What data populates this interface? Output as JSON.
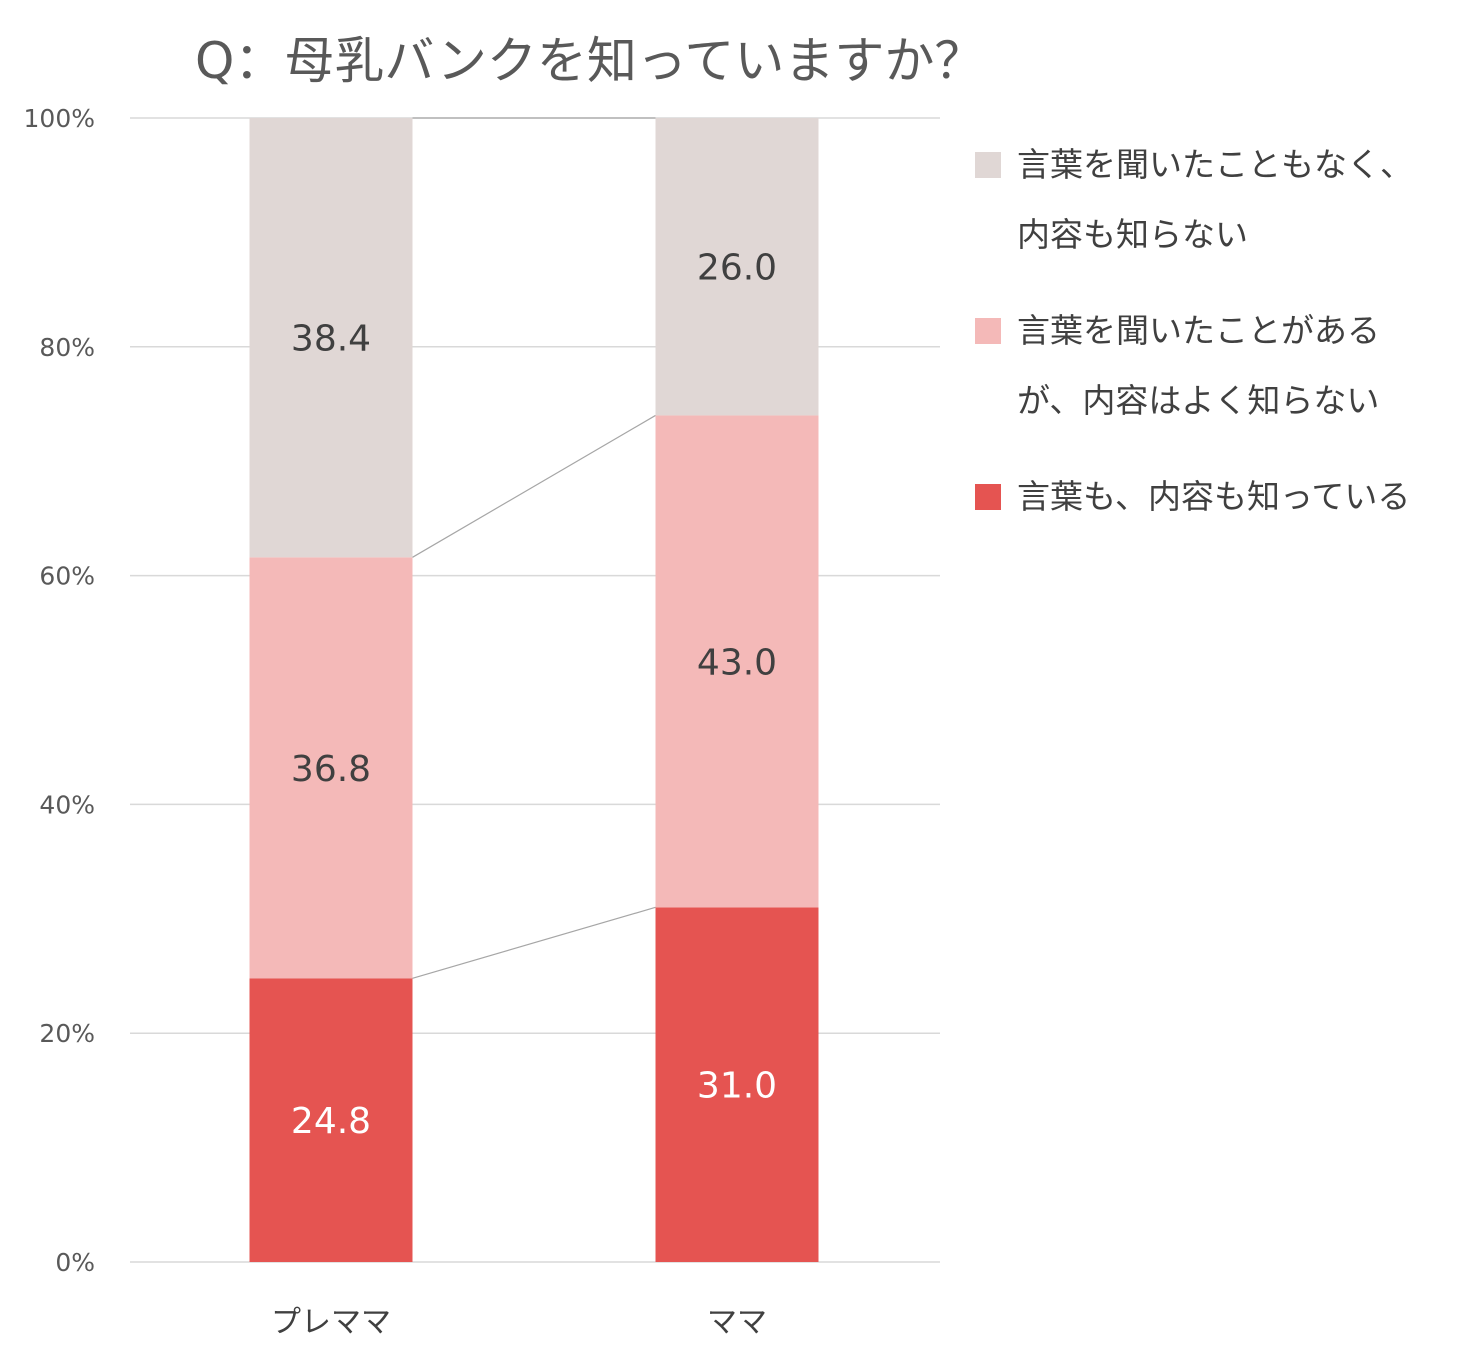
{
  "chart_data": {
    "type": "bar",
    "stacked": true,
    "title": "Q：母乳バンクを知っていますか？",
    "categories": [
      "プレママ",
      "ママ"
    ],
    "series": [
      {
        "name": "言葉も、内容も知っている",
        "values": [
          24.8,
          31.0
        ],
        "color": "#e55451",
        "label_color": "#ffffff"
      },
      {
        "name": "言葉を聞いたことがあるが、内容はよく知らない",
        "values": [
          36.8,
          43.0
        ],
        "color": "#f4b9b8",
        "label_color": "#404040"
      },
      {
        "name": "言葉を聞いたこともなく、内容も知らない",
        "values": [
          38.4,
          26.0
        ],
        "color": "#e0d7d5",
        "label_color": "#404040"
      }
    ],
    "ylim": [
      0,
      100
    ],
    "yticks": [
      "0%",
      "20%",
      "40%",
      "60%",
      "80%",
      "100%"
    ],
    "grid": true,
    "legend_position": "right",
    "legend": [
      {
        "line1": "言葉を聞いたこともなく、",
        "line2": "内容も知らない",
        "color": "#e0d7d5"
      },
      {
        "line1": "言葉を聞いたことがある",
        "line2": "が、内容はよく知らない",
        "color": "#f4b9b8"
      },
      {
        "line1": "言葉も、内容も知っている",
        "line2": "",
        "color": "#e55451"
      }
    ]
  }
}
